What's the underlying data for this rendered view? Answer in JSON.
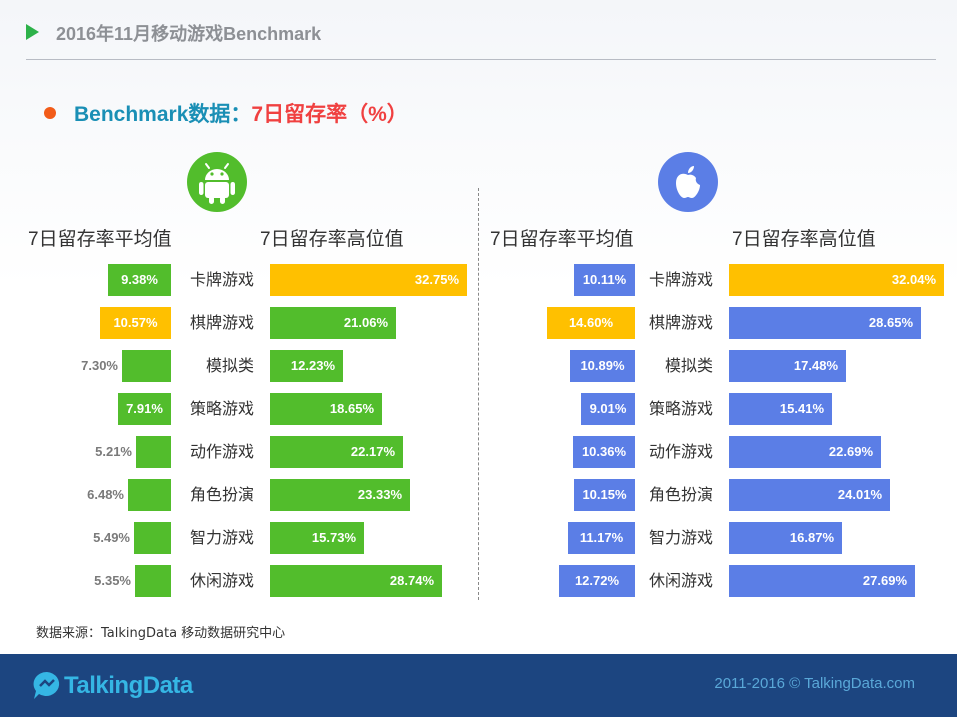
{
  "header": {
    "title": "2016年11月移动游戏Benchmark"
  },
  "subtitle": {
    "prefix": "Benchmark数据：",
    "highlight": "7日留存率（%）"
  },
  "colors": {
    "android_green": "#52bd2c",
    "ios_blue": "#5b7ee6",
    "highlight_yellow": "#ffc000",
    "title_blue": "#1a8fb5",
    "title_red": "#f04040"
  },
  "icons": {
    "android": "android-icon",
    "ios": "apple-icon"
  },
  "chart_data": [
    {
      "type": "bar",
      "platform": "Android",
      "column_headers": {
        "avg": "7日留存率平均值",
        "high": "7日留存率高位值"
      },
      "categories": [
        "卡牌游戏",
        "棋牌游戏",
        "模拟类",
        "策略游戏",
        "动作游戏",
        "角色扮演",
        "智力游戏",
        "休闲游戏"
      ],
      "series": [
        {
          "key": "avg",
          "values": [
            9.38,
            10.57,
            7.3,
            7.91,
            5.21,
            6.48,
            5.49,
            5.35
          ],
          "labels": [
            "9.38%",
            "10.57%",
            "7.30%",
            "7.91%",
            "5.21%",
            "6.48%",
            "5.49%",
            "5.35%"
          ]
        },
        {
          "key": "high",
          "values": [
            32.75,
            21.06,
            12.23,
            18.65,
            22.17,
            23.33,
            15.73,
            28.74
          ],
          "labels": [
            "32.75%",
            "21.06%",
            "12.23%",
            "18.65%",
            "22.17%",
            "23.33%",
            "15.73%",
            "28.74%"
          ]
        }
      ],
      "highlight": {
        "avg": 1,
        "high": 0
      }
    },
    {
      "type": "bar",
      "platform": "iOS",
      "column_headers": {
        "avg": "7日留存率平均值",
        "high": "7日留存率高位值"
      },
      "categories": [
        "卡牌游戏",
        "棋牌游戏",
        "模拟类",
        "策略游戏",
        "动作游戏",
        "角色扮演",
        "智力游戏",
        "休闲游戏"
      ],
      "series": [
        {
          "key": "avg",
          "values": [
            10.11,
            14.6,
            10.89,
            9.01,
            10.36,
            10.15,
            11.17,
            12.72
          ],
          "labels": [
            "10.11%",
            "14.60%",
            "10.89%",
            "9.01%",
            "10.36%",
            "10.15%",
            "11.17%",
            "12.72%"
          ]
        },
        {
          "key": "high",
          "values": [
            32.04,
            28.65,
            17.48,
            15.41,
            22.69,
            24.01,
            16.87,
            27.69
          ],
          "labels": [
            "32.04%",
            "28.65%",
            "17.48%",
            "15.41%",
            "22.69%",
            "24.01%",
            "16.87%",
            "27.69%"
          ]
        }
      ],
      "highlight": {
        "avg": 1,
        "high": 0
      }
    }
  ],
  "source": "数据来源：TalkingData 移动数据研究中心",
  "footer": {
    "logo_text": "TalkingData",
    "copyright": "2011-2016 © TalkingData.com"
  }
}
